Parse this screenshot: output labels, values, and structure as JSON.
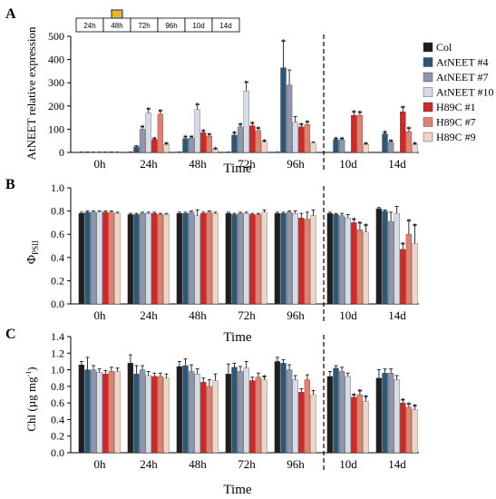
{
  "timeline": {
    "segments": [
      "24h",
      "48h",
      "72h",
      "96h",
      "10d",
      "14d"
    ],
    "highlight_segment": 1,
    "highlight_color": "#f2b21b"
  },
  "legend": {
    "entries": [
      "Col",
      "AtNEET #4",
      "AtNEET #7",
      "AtNEET #10",
      "H89C #1",
      "H89C #7",
      "H89C #9"
    ]
  },
  "colors": [
    "#1f1f1f",
    "#2f5673",
    "#8d97ad",
    "#d6dbe8",
    "#cc2929",
    "#e08270",
    "#f2d4c7"
  ],
  "significance_marker": "*",
  "chart_data": [
    {
      "type": "bar",
      "panel_letter": "A",
      "categories": [
        "0h",
        "24h",
        "48h",
        "72h",
        "96h",
        "10d",
        "14d"
      ],
      "xlabel": "Time",
      "ylabel": "AtNEET relative expression",
      "ylim": [
        0,
        500
      ],
      "yticks": [
        0,
        100,
        200,
        300,
        400,
        500
      ],
      "dashed_divider_after_category": 4,
      "series": [
        {
          "name": "Col",
          "values": [
            1,
            1,
            1,
            1,
            1,
            null,
            null
          ],
          "errors": [
            0.5,
            0.5,
            0.5,
            0.5,
            0.5,
            null,
            null
          ],
          "stars": [
            false,
            false,
            false,
            false,
            false,
            false,
            false
          ]
        },
        {
          "name": "AtNEET #4",
          "values": [
            1,
            25,
            60,
            75,
            365,
            55,
            80
          ],
          "errors": [
            0.5,
            4,
            8,
            10,
            115,
            6,
            8
          ],
          "stars": [
            false,
            false,
            true,
            true,
            true,
            true,
            true
          ]
        },
        {
          "name": "AtNEET #7",
          "values": [
            1,
            100,
            62,
            110,
            290,
            55,
            45
          ],
          "errors": [
            0.5,
            12,
            6,
            12,
            65,
            6,
            6
          ],
          "stars": [
            false,
            true,
            true,
            true,
            false,
            true,
            true
          ]
        },
        {
          "name": "AtNEET #10",
          "values": [
            1,
            170,
            185,
            265,
            130,
            null,
            null
          ],
          "errors": [
            0.5,
            18,
            22,
            38,
            25,
            null,
            null
          ],
          "stars": [
            false,
            true,
            true,
            true,
            false,
            false,
            false
          ]
        },
        {
          "name": "H89C #1",
          "values": [
            1,
            55,
            85,
            115,
            110,
            160,
            175
          ],
          "errors": [
            0.5,
            6,
            8,
            12,
            12,
            15,
            20
          ],
          "stars": [
            false,
            true,
            true,
            true,
            true,
            true,
            true
          ]
        },
        {
          "name": "H89C #7",
          "values": [
            1,
            165,
            70,
            95,
            120,
            160,
            90
          ],
          "errors": [
            0.5,
            15,
            8,
            10,
            12,
            14,
            15
          ],
          "stars": [
            false,
            true,
            true,
            true,
            true,
            true,
            true
          ]
        },
        {
          "name": "H89C #9",
          "values": [
            1,
            35,
            15,
            45,
            40,
            35,
            35
          ],
          "errors": [
            0.5,
            5,
            3,
            6,
            5,
            4,
            4
          ],
          "stars": [
            false,
            true,
            true,
            true,
            false,
            true,
            true
          ]
        }
      ]
    },
    {
      "type": "bar",
      "panel_letter": "B",
      "categories": [
        "0h",
        "24h",
        "48h",
        "72h",
        "96h",
        "10d",
        "14d"
      ],
      "xlabel": "Time",
      "ylabel_base": "Φ",
      "ylabel_sub": "PSII",
      "ylim": [
        0,
        1.0
      ],
      "yticks": [
        0.0,
        0.2,
        0.4,
        0.6,
        0.8,
        1.0
      ],
      "dashed_divider_after_category": 4,
      "series": [
        {
          "name": "Col",
          "values": [
            0.78,
            0.77,
            0.78,
            0.78,
            0.78,
            0.78,
            0.82
          ],
          "errors": [
            0.01,
            0.01,
            0.01,
            0.01,
            0.01,
            0.01,
            0.01
          ],
          "stars": [
            false,
            false,
            false,
            false,
            false,
            false,
            false
          ]
        },
        {
          "name": "AtNEET #4",
          "values": [
            0.79,
            0.77,
            0.78,
            0.77,
            0.78,
            0.77,
            0.8
          ],
          "errors": [
            0.01,
            0.01,
            0.01,
            0.01,
            0.01,
            0.01,
            0.01
          ],
          "stars": [
            false,
            false,
            false,
            false,
            false,
            false,
            false
          ]
        },
        {
          "name": "AtNEET #7",
          "values": [
            0.79,
            0.78,
            0.79,
            0.78,
            0.79,
            0.76,
            0.71
          ],
          "errors": [
            0.01,
            0.01,
            0.01,
            0.01,
            0.01,
            0.02,
            0.08
          ],
          "stars": [
            false,
            false,
            false,
            false,
            false,
            false,
            false
          ]
        },
        {
          "name": "AtNEET #10",
          "values": [
            0.79,
            0.78,
            0.76,
            0.78,
            0.78,
            0.74,
            0.78
          ],
          "errors": [
            0.01,
            0.01,
            0.05,
            0.01,
            0.02,
            0.03,
            0.06
          ],
          "stars": [
            false,
            false,
            false,
            false,
            false,
            false,
            false
          ]
        },
        {
          "name": "H89C #1",
          "values": [
            0.79,
            0.78,
            0.78,
            0.77,
            0.74,
            0.7,
            0.47
          ],
          "errors": [
            0.01,
            0.01,
            0.01,
            0.01,
            0.04,
            0.03,
            0.05
          ],
          "stars": [
            false,
            false,
            false,
            false,
            false,
            true,
            true
          ]
        },
        {
          "name": "H89C #7",
          "values": [
            0.79,
            0.77,
            0.79,
            0.77,
            0.73,
            0.64,
            0.6
          ],
          "errors": [
            0.01,
            0.01,
            0.01,
            0.01,
            0.06,
            0.06,
            0.12
          ],
          "stars": [
            false,
            false,
            false,
            false,
            false,
            true,
            true
          ]
        },
        {
          "name": "H89C #9",
          "values": [
            0.78,
            0.77,
            0.78,
            0.79,
            0.76,
            0.62,
            0.52
          ],
          "errors": [
            0.01,
            0.01,
            0.01,
            0.02,
            0.05,
            0.06,
            0.16
          ],
          "stars": [
            false,
            false,
            false,
            false,
            false,
            true,
            true
          ]
        }
      ]
    },
    {
      "type": "bar",
      "panel_letter": "C",
      "categories": [
        "0h",
        "24h",
        "48h",
        "72h",
        "96h",
        "10d",
        "14d"
      ],
      "xlabel": "Time",
      "ylabel_base": "Chl (µg mg",
      "ylabel_sup": "-1",
      "ylabel_end": ")",
      "ylim": [
        0,
        1.4
      ],
      "yticks": [
        0.0,
        0.2,
        0.4,
        0.6,
        0.8,
        1.0,
        1.2,
        1.4
      ],
      "dashed_divider_after_category": 4,
      "series": [
        {
          "name": "Col",
          "values": [
            1.06,
            1.08,
            1.04,
            0.95,
            1.1,
            0.92,
            0.9
          ],
          "errors": [
            0.04,
            0.1,
            0.06,
            0.12,
            0.05,
            0.06,
            0.1
          ],
          "stars": [
            false,
            false,
            false,
            false,
            false,
            false,
            false
          ]
        },
        {
          "name": "AtNEET #4",
          "values": [
            1.0,
            0.95,
            1.05,
            1.03,
            1.08,
            1.02,
            0.96
          ],
          "errors": [
            0.15,
            0.1,
            0.08,
            0.05,
            0.04,
            0.03,
            0.05
          ],
          "stars": [
            false,
            false,
            false,
            false,
            false,
            false,
            false
          ]
        },
        {
          "name": "AtNEET #7",
          "values": [
            1.0,
            1.0,
            0.98,
            0.98,
            1.0,
            0.98,
            0.96
          ],
          "errors": [
            0.05,
            0.05,
            0.08,
            0.06,
            0.06,
            0.05,
            0.05
          ],
          "stars": [
            false,
            false,
            false,
            false,
            false,
            false,
            false
          ]
        },
        {
          "name": "AtNEET #10",
          "values": [
            0.97,
            0.93,
            0.95,
            1.02,
            0.88,
            0.92,
            0.88
          ],
          "errors": [
            0.04,
            0.05,
            0.06,
            0.08,
            0.05,
            0.04,
            0.05
          ],
          "stars": [
            false,
            false,
            false,
            false,
            false,
            false,
            false
          ]
        },
        {
          "name": "H89C #1",
          "values": [
            0.95,
            0.92,
            0.85,
            0.87,
            0.73,
            0.67,
            0.6
          ],
          "errors": [
            0.04,
            0.04,
            0.05,
            0.04,
            0.04,
            0.03,
            0.04
          ],
          "stars": [
            false,
            false,
            false,
            false,
            false,
            true,
            true
          ]
        },
        {
          "name": "H89C #7",
          "values": [
            0.98,
            0.92,
            0.8,
            0.91,
            0.88,
            0.7,
            0.55
          ],
          "errors": [
            0.05,
            0.04,
            0.08,
            0.05,
            0.06,
            0.05,
            0.04
          ],
          "stars": [
            false,
            false,
            false,
            false,
            false,
            true,
            true
          ]
        },
        {
          "name": "H89C #9",
          "values": [
            0.98,
            0.9,
            0.87,
            0.88,
            0.7,
            0.62,
            0.52
          ],
          "errors": [
            0.04,
            0.05,
            0.08,
            0.04,
            0.05,
            0.06,
            0.05
          ],
          "stars": [
            false,
            false,
            false,
            true,
            false,
            true,
            true
          ]
        }
      ]
    }
  ]
}
